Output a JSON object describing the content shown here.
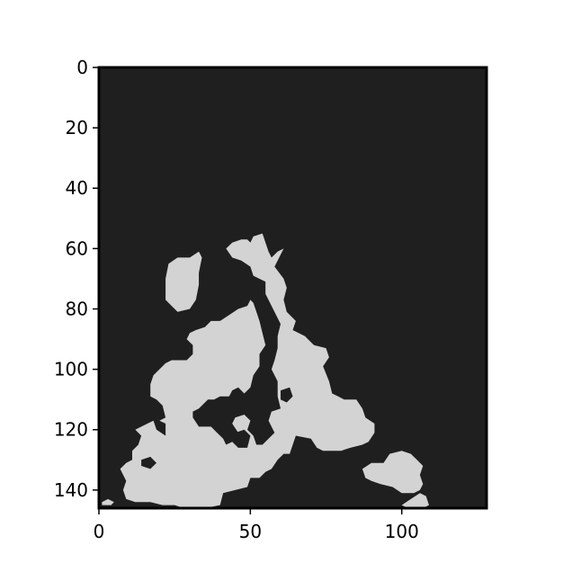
{
  "chart_data": {
    "type": "heatmap",
    "title": "",
    "xlabel": "",
    "ylabel": "",
    "xlim": [
      0,
      128
    ],
    "ylim": [
      146,
      0
    ],
    "x_ticks": [
      {
        "value": 0,
        "label": "0"
      },
      {
        "value": 50,
        "label": "50"
      },
      {
        "value": 100,
        "label": "100"
      }
    ],
    "y_ticks": [
      {
        "value": 0,
        "label": "0"
      },
      {
        "value": 20,
        "label": "20"
      },
      {
        "value": 40,
        "label": "40"
      },
      {
        "value": 60,
        "label": "60"
      },
      {
        "value": 80,
        "label": "80"
      },
      {
        "value": 100,
        "label": "100"
      },
      {
        "value": 120,
        "label": "120"
      },
      {
        "value": 140,
        "label": "140"
      }
    ],
    "grid": false,
    "legend": "none",
    "colors": {
      "background_value": "#1f1f1f",
      "foreground_value": "#d3d3d3",
      "axes_frame": "#000000"
    },
    "mask_regions": [
      {
        "name": "upper-left-blob",
        "polygon": [
          [
            22,
            70
          ],
          [
            23,
            65
          ],
          [
            26,
            63
          ],
          [
            30,
            63
          ],
          [
            33,
            61
          ],
          [
            34,
            63
          ],
          [
            33,
            68
          ],
          [
            33,
            72
          ],
          [
            32,
            77
          ],
          [
            30,
            80
          ],
          [
            26,
            81
          ],
          [
            24,
            79
          ],
          [
            22,
            77
          ]
        ]
      },
      {
        "name": "main-mass",
        "polygon": [
          [
            42,
            60
          ],
          [
            44,
            58
          ],
          [
            47,
            57
          ],
          [
            49,
            57
          ],
          [
            50,
            58
          ],
          [
            51,
            56
          ],
          [
            54,
            55
          ],
          [
            55,
            58
          ],
          [
            56,
            61
          ],
          [
            57,
            63
          ],
          [
            59,
            61
          ],
          [
            61,
            60
          ],
          [
            58,
            66
          ],
          [
            61,
            70
          ],
          [
            62,
            73
          ],
          [
            61,
            77
          ],
          [
            62,
            81
          ],
          [
            65,
            84
          ],
          [
            64,
            87
          ],
          [
            68,
            89
          ],
          [
            71,
            92
          ],
          [
            75,
            93
          ],
          [
            76,
            96
          ],
          [
            74,
            99
          ],
          [
            76,
            104
          ],
          [
            77,
            108
          ],
          [
            79,
            109
          ],
          [
            81,
            110
          ],
          [
            85,
            110
          ],
          [
            87,
            113
          ],
          [
            88,
            116
          ],
          [
            91,
            118
          ],
          [
            91,
            121
          ],
          [
            89,
            124
          ],
          [
            87,
            125
          ],
          [
            83,
            126
          ],
          [
            80,
            127
          ],
          [
            74,
            127
          ],
          [
            72,
            126
          ],
          [
            70,
            123
          ],
          [
            65,
            122
          ],
          [
            64,
            125
          ],
          [
            63,
            128
          ],
          [
            61,
            128
          ],
          [
            59,
            130
          ],
          [
            57,
            133
          ],
          [
            55,
            134
          ],
          [
            53,
            136
          ],
          [
            50,
            136
          ],
          [
            49,
            139
          ],
          [
            45,
            140
          ],
          [
            41,
            141
          ],
          [
            40,
            145
          ],
          [
            35,
            146
          ],
          [
            28,
            146
          ],
          [
            25,
            145
          ],
          [
            21,
            145
          ],
          [
            17,
            144
          ],
          [
            12,
            144
          ],
          [
            9,
            143
          ],
          [
            8,
            140
          ],
          [
            9,
            137
          ],
          [
            7,
            133
          ],
          [
            9,
            131
          ],
          [
            11,
            130
          ],
          [
            11,
            127
          ],
          [
            13,
            125
          ],
          [
            14,
            122
          ],
          [
            12,
            120
          ],
          [
            16,
            118
          ],
          [
            18,
            117
          ],
          [
            19,
            120
          ],
          [
            22,
            122
          ],
          [
            22,
            118
          ],
          [
            20,
            117
          ],
          [
            22,
            116
          ],
          [
            21,
            112
          ],
          [
            19,
            110
          ],
          [
            17,
            109
          ],
          [
            17,
            105
          ],
          [
            18,
            102
          ],
          [
            20,
            100
          ],
          [
            22,
            98
          ],
          [
            24,
            97
          ],
          [
            29,
            97
          ],
          [
            31,
            95
          ],
          [
            31,
            92
          ],
          [
            29,
            90
          ],
          [
            30,
            88
          ],
          [
            32,
            87
          ],
          [
            35,
            86
          ],
          [
            37,
            84
          ],
          [
            40,
            84
          ],
          [
            43,
            82
          ],
          [
            46,
            80
          ],
          [
            49,
            79
          ],
          [
            50,
            77
          ],
          [
            51,
            78
          ],
          [
            52,
            81
          ],
          [
            53,
            84
          ],
          [
            54,
            88
          ],
          [
            55,
            92
          ],
          [
            53,
            95
          ],
          [
            53,
            99
          ],
          [
            51,
            102
          ],
          [
            50,
            106
          ],
          [
            48,
            108
          ],
          [
            46,
            106
          ],
          [
            44,
            107
          ],
          [
            43,
            109
          ],
          [
            40,
            109
          ],
          [
            38,
            110
          ],
          [
            36,
            110
          ],
          [
            33,
            113
          ],
          [
            31,
            114
          ],
          [
            31,
            116
          ],
          [
            33,
            119
          ],
          [
            37,
            119
          ],
          [
            39,
            121
          ],
          [
            41,
            123
          ],
          [
            42,
            125
          ],
          [
            44,
            124
          ],
          [
            46,
            121
          ],
          [
            44,
            118
          ],
          [
            45,
            116
          ],
          [
            48,
            115
          ],
          [
            50,
            117
          ],
          [
            49,
            120
          ],
          [
            51,
            122
          ],
          [
            52,
            125
          ],
          [
            54,
            125
          ],
          [
            56,
            123
          ],
          [
            58,
            121
          ],
          [
            56,
            117
          ],
          [
            57,
            114
          ],
          [
            60,
            113
          ],
          [
            59,
            109
          ],
          [
            59,
            104
          ],
          [
            57,
            100
          ],
          [
            58,
            97
          ],
          [
            59,
            93
          ],
          [
            59,
            89
          ],
          [
            60,
            85
          ],
          [
            57,
            79
          ],
          [
            55,
            75
          ],
          [
            55,
            71
          ],
          [
            51,
            69
          ],
          [
            50,
            66
          ],
          [
            47,
            64
          ],
          [
            44,
            63
          ]
        ]
      },
      {
        "name": "right-blob",
        "polygon": [
          [
            87,
            133
          ],
          [
            90,
            131
          ],
          [
            94,
            131
          ],
          [
            96,
            128
          ],
          [
            100,
            127
          ],
          [
            103,
            128
          ],
          [
            105,
            130
          ],
          [
            107,
            132
          ],
          [
            106,
            135
          ],
          [
            107,
            138
          ],
          [
            106,
            140
          ],
          [
            104,
            141
          ],
          [
            100,
            141
          ],
          [
            97,
            139
          ],
          [
            93,
            138
          ],
          [
            90,
            137
          ],
          [
            88,
            136
          ]
        ]
      },
      {
        "name": "lower-right-spot",
        "polygon": [
          [
            103,
            143
          ],
          [
            106,
            141
          ],
          [
            108,
            142
          ],
          [
            109,
            145
          ],
          [
            107,
            146
          ],
          [
            102,
            146
          ],
          [
            100,
            145
          ]
        ]
      },
      {
        "name": "lower-left-spot",
        "polygon": [
          [
            1,
            144
          ],
          [
            3,
            143
          ],
          [
            5,
            144
          ],
          [
            4,
            145
          ],
          [
            1,
            145
          ]
        ]
      }
    ],
    "mask_holes": [
      {
        "name": "inner-hole-a",
        "polygon": [
          [
            39,
            110
          ],
          [
            43,
            109
          ],
          [
            45,
            110
          ],
          [
            44,
            113
          ],
          [
            42,
            114
          ],
          [
            39,
            113
          ]
        ]
      },
      {
        "name": "inner-hole-b",
        "polygon": [
          [
            51,
            113
          ],
          [
            54,
            112
          ],
          [
            56,
            113
          ],
          [
            55,
            116
          ],
          [
            52,
            116
          ]
        ]
      },
      {
        "name": "inner-hole-c",
        "polygon": [
          [
            45,
            121
          ],
          [
            48,
            120
          ],
          [
            50,
            122
          ],
          [
            49,
            126
          ],
          [
            46,
            126
          ],
          [
            44,
            124
          ]
        ]
      },
      {
        "name": "inner-hole-d",
        "polygon": [
          [
            60,
            107
          ],
          [
            63,
            106
          ],
          [
            64,
            109
          ],
          [
            62,
            111
          ],
          [
            60,
            110
          ]
        ]
      },
      {
        "name": "inner-hole-e",
        "polygon": [
          [
            14,
            130
          ],
          [
            17,
            129
          ],
          [
            19,
            131
          ],
          [
            17,
            133
          ],
          [
            14,
            132
          ]
        ]
      }
    ]
  }
}
